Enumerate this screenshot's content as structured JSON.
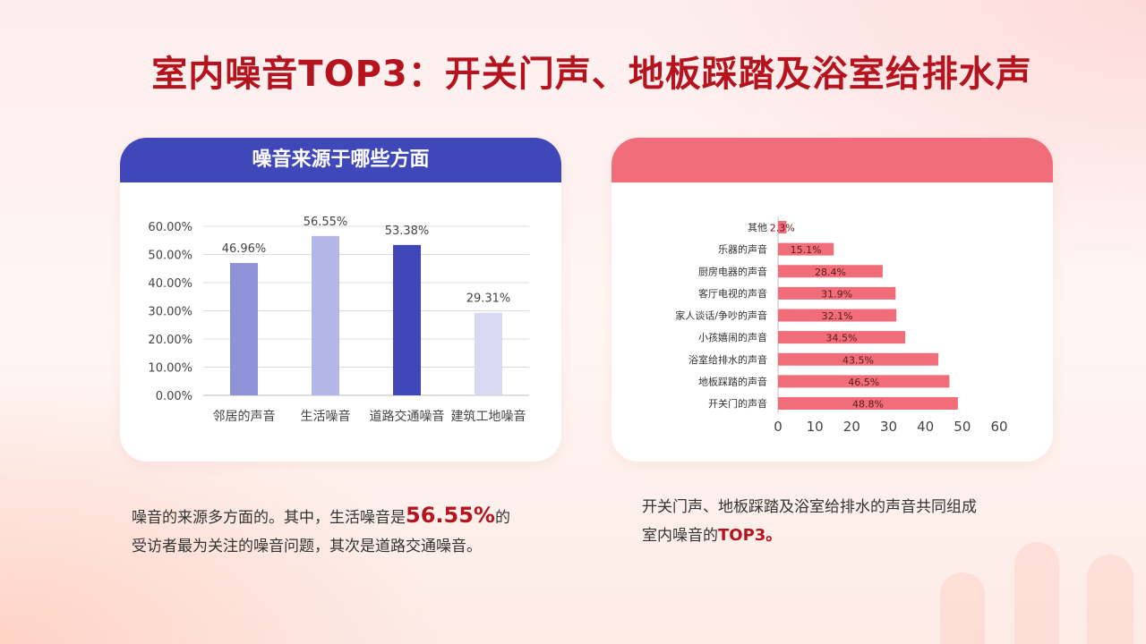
{
  "title": "室内噪音TOP3：开关门声、地板踩踏及浴室给排水声",
  "left_card": {
    "heading": "噪音来源于哪些方面"
  },
  "right_card": {
    "heading": ""
  },
  "caption_left": {
    "part1": "噪音的来源多方面的。其中，生活噪音是",
    "highlight": "56.55%",
    "part2": "的",
    "part3": "受访者最为关注的噪音问题，其次是道路交通噪音。"
  },
  "caption_right": {
    "part1": "开关门声、地板踩踏及浴室给排水的声音共同组成",
    "part2": "室内噪音的",
    "highlight": "TOP3。"
  },
  "colors": {
    "title": "#b5141f",
    "blue_header": "#4047b8",
    "pink_header": "#f16d79",
    "bar_pink": "#f16d79"
  },
  "chart_data": [
    {
      "type": "bar",
      "categories": [
        "邻居的声音",
        "生活噪音",
        "道路交通噪音",
        "建筑工地噪音"
      ],
      "values": [
        46.96,
        56.55,
        53.38,
        29.31
      ],
      "data_labels": [
        "46.96%",
        "56.55%",
        "53.38%",
        "29.31%"
      ],
      "colors": [
        "#8e92d6",
        "#b3b6e6",
        "#4047b8",
        "#d7d8f1"
      ],
      "y_ticks": [
        "0.00%",
        "10.00%",
        "20.00%",
        "30.00%",
        "40.00%",
        "50.00%",
        "60.00%"
      ],
      "ylim": [
        0,
        60
      ],
      "grid": true
    },
    {
      "type": "bar",
      "orientation": "horizontal",
      "categories": [
        "其他",
        "乐器的声音",
        "厨房电器的声音",
        "客厅电视的声音",
        "家人谈话/争吵的声音",
        "小孩嬉闹的声音",
        "浴室给排水的声音",
        "地板踩踏的声音",
        "开关门的声音"
      ],
      "values": [
        2.3,
        15.1,
        28.4,
        31.9,
        32.1,
        34.5,
        43.5,
        46.5,
        48.8
      ],
      "data_labels": [
        "2.3%",
        "15.1%",
        "28.4%",
        "31.9%",
        "32.1%",
        "34.5%",
        "43.5%",
        "46.5%",
        "48.8%"
      ],
      "x_ticks": [
        "0",
        "10",
        "20",
        "30",
        "40",
        "50",
        "60"
      ],
      "xlim": [
        0,
        60
      ],
      "grid": false
    }
  ]
}
